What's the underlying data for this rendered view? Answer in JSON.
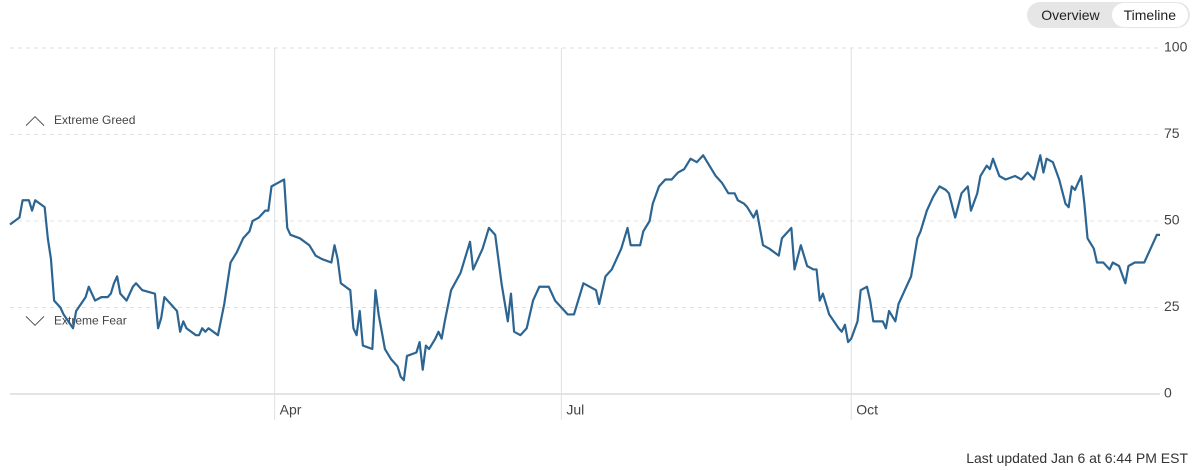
{
  "chart_data": {
    "type": "line",
    "x": [
      0,
      3,
      4,
      6,
      7,
      8,
      11,
      12,
      13,
      14,
      16,
      17,
      20,
      21,
      24,
      25,
      27,
      29,
      31,
      32,
      33,
      34,
      35,
      37,
      39,
      40,
      42,
      46,
      47,
      48,
      49,
      51,
      53,
      54,
      55,
      56,
      59,
      60,
      61,
      62,
      63,
      66,
      68,
      70,
      72,
      74,
      76,
      77,
      79,
      81,
      82,
      83,
      85,
      87,
      88,
      89,
      92,
      95,
      97,
      99,
      102,
      103,
      104,
      105,
      108,
      109,
      110,
      111,
      112,
      115,
      116,
      117,
      119,
      121,
      123,
      124,
      125,
      126,
      129,
      130,
      131,
      132,
      133,
      135,
      136,
      137,
      138,
      140,
      143,
      145,
      146,
      147,
      150,
      152,
      154,
      156,
      158,
      159,
      160,
      162,
      164,
      166,
      168,
      171,
      173,
      175,
      177,
      179,
      181,
      182,
      186,
      187,
      189,
      191,
      194,
      196,
      197,
      200,
      201,
      203,
      204,
      206,
      208,
      210,
      212,
      214,
      216,
      218,
      220,
      222,
      224,
      226,
      228,
      230,
      231,
      233,
      234,
      236,
      237,
      239,
      241,
      244,
      245,
      247,
      248,
      249,
      251,
      253,
      255,
      256,
      257,
      258,
      260,
      263,
      264,
      265,
      266,
      267,
      269,
      270,
      272,
      273,
      274,
      277,
      278,
      279,
      281,
      282,
      284,
      286,
      288,
      289,
      291,
      293,
      295,
      297,
      298,
      300,
      302,
      304,
      305,
      307,
      308,
      310,
      311,
      312,
      314,
      316,
      319,
      321,
      323,
      325,
      327,
      328,
      329,
      331,
      333,
      335,
      336,
      337,
      338,
      340,
      341,
      342,
      344,
      345,
      347,
      349,
      350,
      352,
      354,
      355,
      357,
      360,
      362,
      364,
      365
    ],
    "series": [
      {
        "color": "#2c6592",
        "values": [
          49,
          51,
          56,
          56,
          53,
          56,
          54,
          45,
          39,
          27,
          25,
          23,
          19,
          24,
          28,
          31,
          27,
          28,
          28,
          29,
          32,
          34,
          29,
          27,
          31,
          32,
          30,
          29,
          19,
          22,
          28,
          26,
          24,
          18,
          21,
          19,
          17,
          17,
          19,
          18,
          19,
          17,
          26,
          38,
          41,
          45,
          47,
          50,
          51,
          53,
          53,
          60,
          61,
          62,
          48,
          46,
          45,
          43,
          40,
          39,
          38,
          43,
          39,
          32,
          30,
          19,
          17,
          24,
          14,
          13,
          30,
          23,
          13,
          10,
          8,
          5,
          4,
          11,
          12,
          15,
          7,
          14,
          13,
          16,
          18,
          16,
          21,
          30,
          35,
          41,
          44,
          36,
          42,
          48,
          46,
          32,
          21,
          29,
          18,
          17,
          19,
          27,
          31,
          31,
          27,
          25,
          23,
          23,
          29,
          32,
          30,
          26,
          34,
          36,
          42,
          48,
          43,
          43,
          47,
          50,
          55,
          60,
          62,
          62,
          64,
          65,
          68,
          67,
          69,
          66,
          63,
          61,
          58,
          58,
          56,
          55,
          54,
          51,
          53,
          43,
          42,
          40,
          45,
          47,
          48,
          36,
          43,
          37,
          36,
          36,
          27,
          29,
          23,
          19,
          18,
          20,
          15,
          16,
          21,
          30,
          31,
          27,
          21,
          21,
          19,
          24,
          21,
          26,
          30,
          34,
          45,
          47,
          53,
          57,
          60,
          59,
          58,
          51,
          58,
          60,
          53,
          58,
          63,
          66,
          65,
          68,
          63,
          62,
          63,
          62,
          64,
          62,
          69,
          64,
          68,
          67,
          62,
          55,
          54,
          60,
          59,
          63,
          55,
          45,
          42,
          38,
          38,
          36,
          38,
          37,
          32,
          37,
          38,
          38,
          42,
          46,
          46
        ]
      }
    ],
    "xlim": [
      0,
      365
    ],
    "xticks": [
      {
        "value": 84,
        "label": "Apr"
      },
      {
        "value": 175,
        "label": "Jul"
      },
      {
        "value": 267,
        "label": "Oct"
      }
    ],
    "ylim": [
      0,
      100
    ],
    "yticks": [
      0,
      25,
      50,
      75,
      100
    ],
    "grid": true,
    "annotations": [
      "Extreme Greed",
      "Extreme Fear"
    ],
    "buttons": [
      "Overview",
      "Timeline"
    ],
    "active_button": 1,
    "footer": "Last updated Jan 6 at 6:44 PM EST"
  }
}
